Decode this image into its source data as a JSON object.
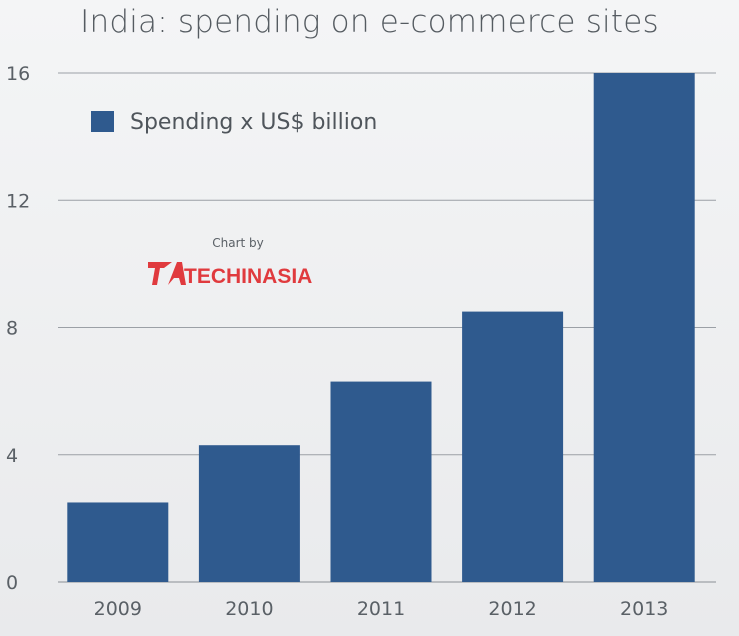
{
  "chart_data": {
    "type": "bar",
    "title": "India: spending on e-commerce sites",
    "categories": [
      "2009",
      "2010",
      "2011",
      "2012",
      "2013"
    ],
    "series": [
      {
        "name": "Spending x US$ billion",
        "values": [
          2.5,
          4.3,
          6.3,
          8.5,
          16
        ],
        "color": "#2f5a8e"
      }
    ],
    "ylim": [
      0,
      16
    ],
    "yticks": [
      0,
      4,
      8,
      12,
      16
    ],
    "grid": true,
    "legend_position": "top-left"
  },
  "credit": {
    "label": "Chart by",
    "logo_text": "TECHINASIA",
    "logo_color": "#e03a3e"
  }
}
